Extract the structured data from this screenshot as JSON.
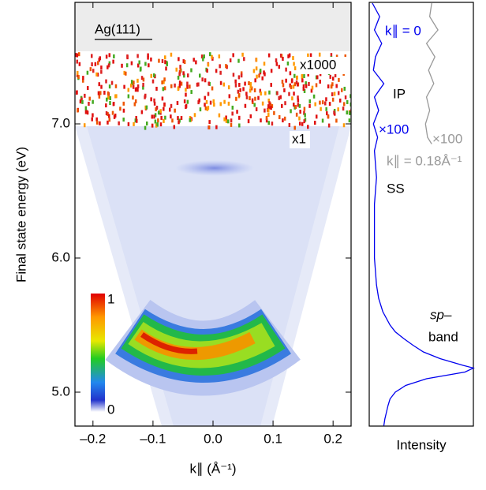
{
  "chart_data": [
    {
      "type": "heatmap",
      "xlabel": "k∥ (Å⁻¹)",
      "ylabel": "Final state energy (eV)",
      "xlim": [
        -0.23,
        0.23
      ],
      "ylim": [
        4.747,
        7.906
      ],
      "xticks": [
        {
          "value": -0.2,
          "label": "–0.2"
        },
        {
          "value": -0.1,
          "label": "–0.1"
        },
        {
          "value": 0,
          "label": "0.0"
        },
        0.1,
        0.2
      ],
      "yticks": [
        {
          "value": 5,
          "label": "5.0"
        },
        {
          "value": 6,
          "label": "6.0"
        },
        {
          "value": 7,
          "label": "7.0"
        }
      ],
      "annotations": [
        "Ag(111)",
        "x1000",
        "x1"
      ],
      "colorbar": {
        "ticks": [
          0,
          1
        ]
      }
    },
    {
      "type": "line",
      "xlabel": "Intensity",
      "xlim": [
        0,
        1
      ],
      "ylim": [
        4.747,
        7.906
      ],
      "series": [
        {
          "name": "k∥ = 0",
          "color": "#0000ee",
          "energy": [
            7.9,
            7.8,
            7.7,
            7.6,
            7.5,
            7.4,
            7.3,
            7.2,
            7.1,
            7.0,
            6.9,
            6.8,
            6.7,
            6.6,
            6.5,
            6.4,
            6.3,
            6.2,
            6.1,
            6.0,
            5.9,
            5.8,
            5.7,
            5.6,
            5.5,
            5.45,
            5.4,
            5.35,
            5.3,
            5.25,
            5.2,
            5.18,
            5.15,
            5.1,
            5.05,
            5.0,
            4.95,
            4.9,
            4.8,
            4.75
          ],
          "values": [
            0.03,
            0.1,
            0.05,
            0.12,
            0.06,
            0.04,
            0.14,
            0.05,
            0.09,
            0.04,
            0.08,
            0.05,
            0.06,
            0.07,
            0.06,
            0.05,
            0.05,
            0.05,
            0.05,
            0.05,
            0.06,
            0.07,
            0.09,
            0.13,
            0.2,
            0.25,
            0.33,
            0.42,
            0.52,
            0.68,
            0.9,
            1.0,
            0.92,
            0.55,
            0.35,
            0.25,
            0.2,
            0.18,
            0.15,
            0.14
          ]
        },
        {
          "name": "k∥ = 0.18Å⁻¹",
          "color": "#999999",
          "energy": [
            7.9,
            7.8,
            7.7,
            7.6,
            7.5,
            7.4,
            7.3,
            7.2,
            7.1,
            7.0,
            6.9,
            6.85
          ],
          "values": [
            0.6,
            0.58,
            0.66,
            0.55,
            0.63,
            0.57,
            0.62,
            0.55,
            0.58,
            0.54,
            0.56,
            0.6
          ]
        }
      ],
      "annotations": [
        "IP",
        "×100",
        "×100",
        "SS",
        "sp–",
        "band"
      ]
    }
  ]
}
